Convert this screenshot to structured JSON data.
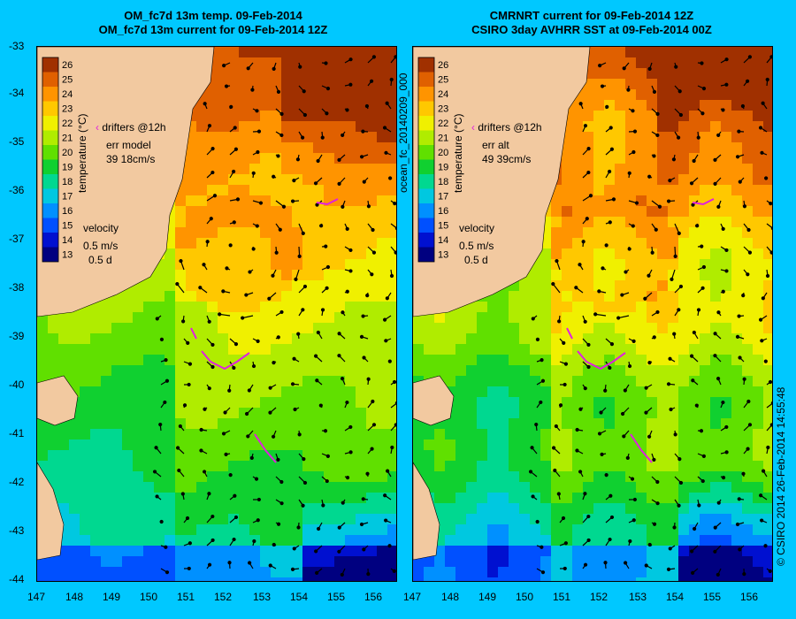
{
  "left_panel": {
    "title_line1": "OM_fc7d 13m temp. 09-Feb-2014",
    "title_line2": "OM_fc7d 13m current for 09-Feb-2014 12Z",
    "drifters_label": "drifters @12h",
    "err_label": "err model",
    "err_value": "39 18cm/s",
    "velocity_label": "velocity",
    "velocity_scale": "0.5 m/s",
    "velocity_days": "0.5 d",
    "colorbar_label": "temperature (°C)"
  },
  "right_panel": {
    "title_line1": "CMRNRT current for 09-Feb-2014 12Z",
    "title_line2": "CSIRO 3day AVHRR SST at 09-Feb-2014 00Z",
    "drifters_label": "drifters @12h",
    "err_label": "err alt",
    "err_value": "49 39cm/s",
    "velocity_label": "velocity",
    "velocity_scale": "0.5 m/s",
    "velocity_days": "0.5 d",
    "colorbar_label": "temperature (°C)"
  },
  "side_label": "ocean_fc_20140209_000",
  "footer_label": "© CSIRO 2014   26-Feb-2014 14:55:48",
  "colorbar_ticks": [
    "26",
    "25",
    "24",
    "23",
    "22",
    "21",
    "20",
    "19",
    "18",
    "17",
    "16",
    "15",
    "14",
    "13"
  ],
  "x_ticks": [
    "147",
    "148",
    "149",
    "150",
    "151",
    "152",
    "153",
    "154",
    "155",
    "156"
  ],
  "y_ticks": [
    "-33",
    "-34",
    "-35",
    "-36",
    "-37",
    "-38",
    "-39",
    "-40",
    "-41",
    "-42",
    "-43",
    "-44"
  ],
  "colors": {
    "background": "#00c8ff",
    "land": "#f2c9a0",
    "drifter": "#e020e0",
    "scale": [
      "#000080",
      "#0010d0",
      "#0050ff",
      "#0090ff",
      "#00c8e0",
      "#00d890",
      "#10d030",
      "#60e000",
      "#b0ec00",
      "#f0f000",
      "#ffc800",
      "#ff9400",
      "#e06000",
      "#a03000"
    ]
  }
}
